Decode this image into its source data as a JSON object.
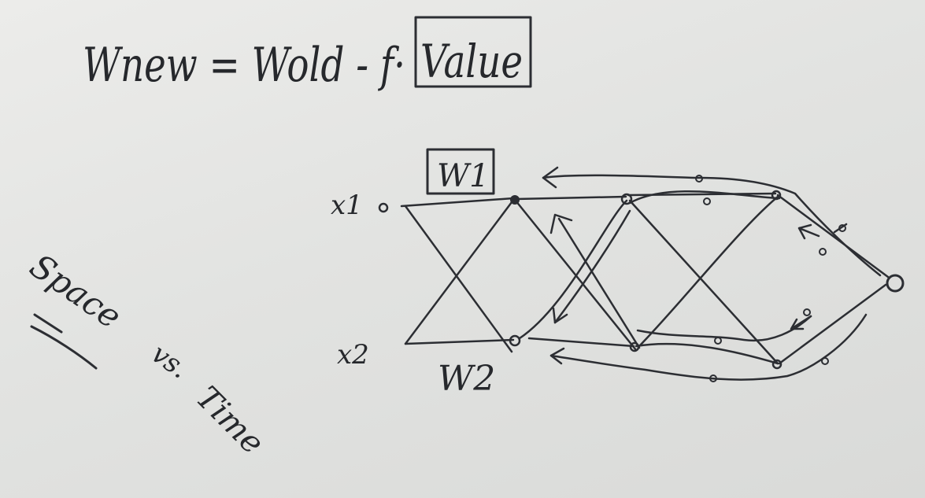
{
  "formula": {
    "text": "Wnew = Wold - f·",
    "boxed": "Value"
  },
  "network": {
    "input_labels": [
      "x1",
      "x2"
    ],
    "weight_labels": [
      "W1",
      "W2"
    ]
  },
  "side_note": {
    "space": "Space",
    "vs": "vs.",
    "time": "Time"
  },
  "ink_color": "#2c2e33",
  "board_color": "#e3e4e2"
}
